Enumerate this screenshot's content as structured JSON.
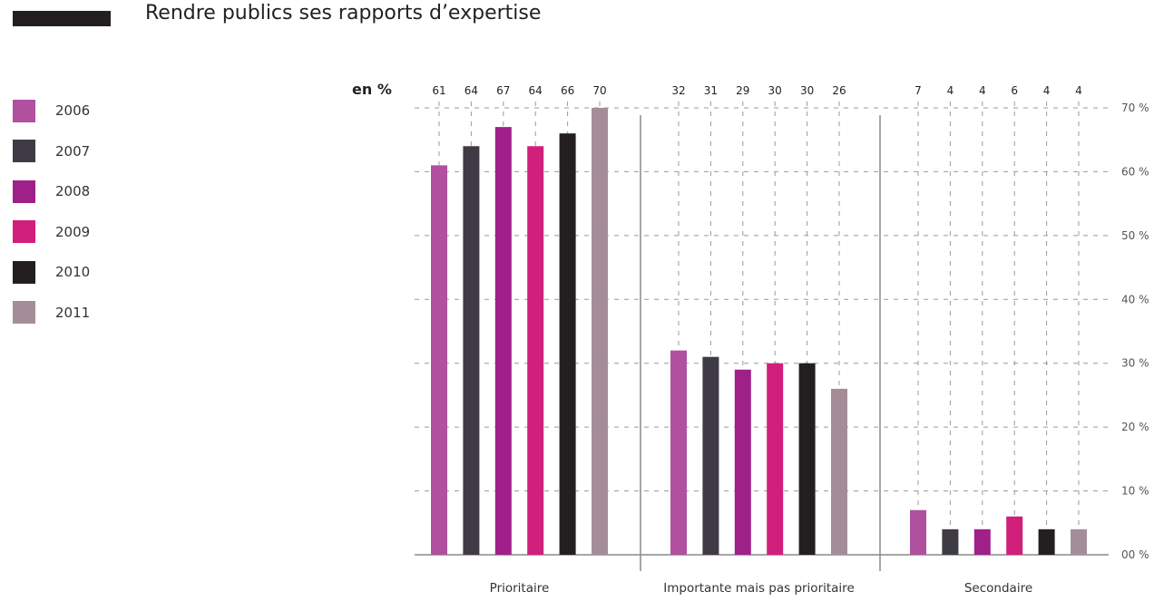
{
  "title": "Rendre publics ses rapports d’expertise",
  "unit": "en %",
  "colors": {
    "2006": "#b0509e",
    "2007": "#3f3b45",
    "2008": "#a0208a",
    "2009": "#d11f7c",
    "2010": "#231f20",
    "2011": "#a58d97"
  },
  "chart_data": {
    "type": "bar",
    "title": "Rendre publics ses rapports d’expertise",
    "ylabel": "en %",
    "categories": [
      "Prioritaire",
      "Importante mais pas prioritaire",
      "Secondaire"
    ],
    "series": [
      {
        "name": "2006",
        "values": [
          61,
          32,
          7
        ]
      },
      {
        "name": "2007",
        "values": [
          64,
          31,
          4
        ]
      },
      {
        "name": "2008",
        "values": [
          67,
          29,
          4
        ]
      },
      {
        "name": "2009",
        "values": [
          64,
          30,
          6
        ]
      },
      {
        "name": "2010",
        "values": [
          66,
          30,
          4
        ]
      },
      {
        "name": "2011",
        "values": [
          70,
          26,
          4
        ]
      }
    ],
    "ylim": [
      0,
      70
    ],
    "yticks": [
      {
        "value": 0,
        "label": "00 %"
      },
      {
        "value": 10,
        "label": "10 %"
      },
      {
        "value": 20,
        "label": "20 %"
      },
      {
        "value": 30,
        "label": "30 %"
      },
      {
        "value": 40,
        "label": "40 %"
      },
      {
        "value": 50,
        "label": "50 %"
      },
      {
        "value": 60,
        "label": "60 %"
      },
      {
        "value": 70,
        "label": "70 %"
      }
    ],
    "grid": true,
    "legend_position": "left"
  }
}
